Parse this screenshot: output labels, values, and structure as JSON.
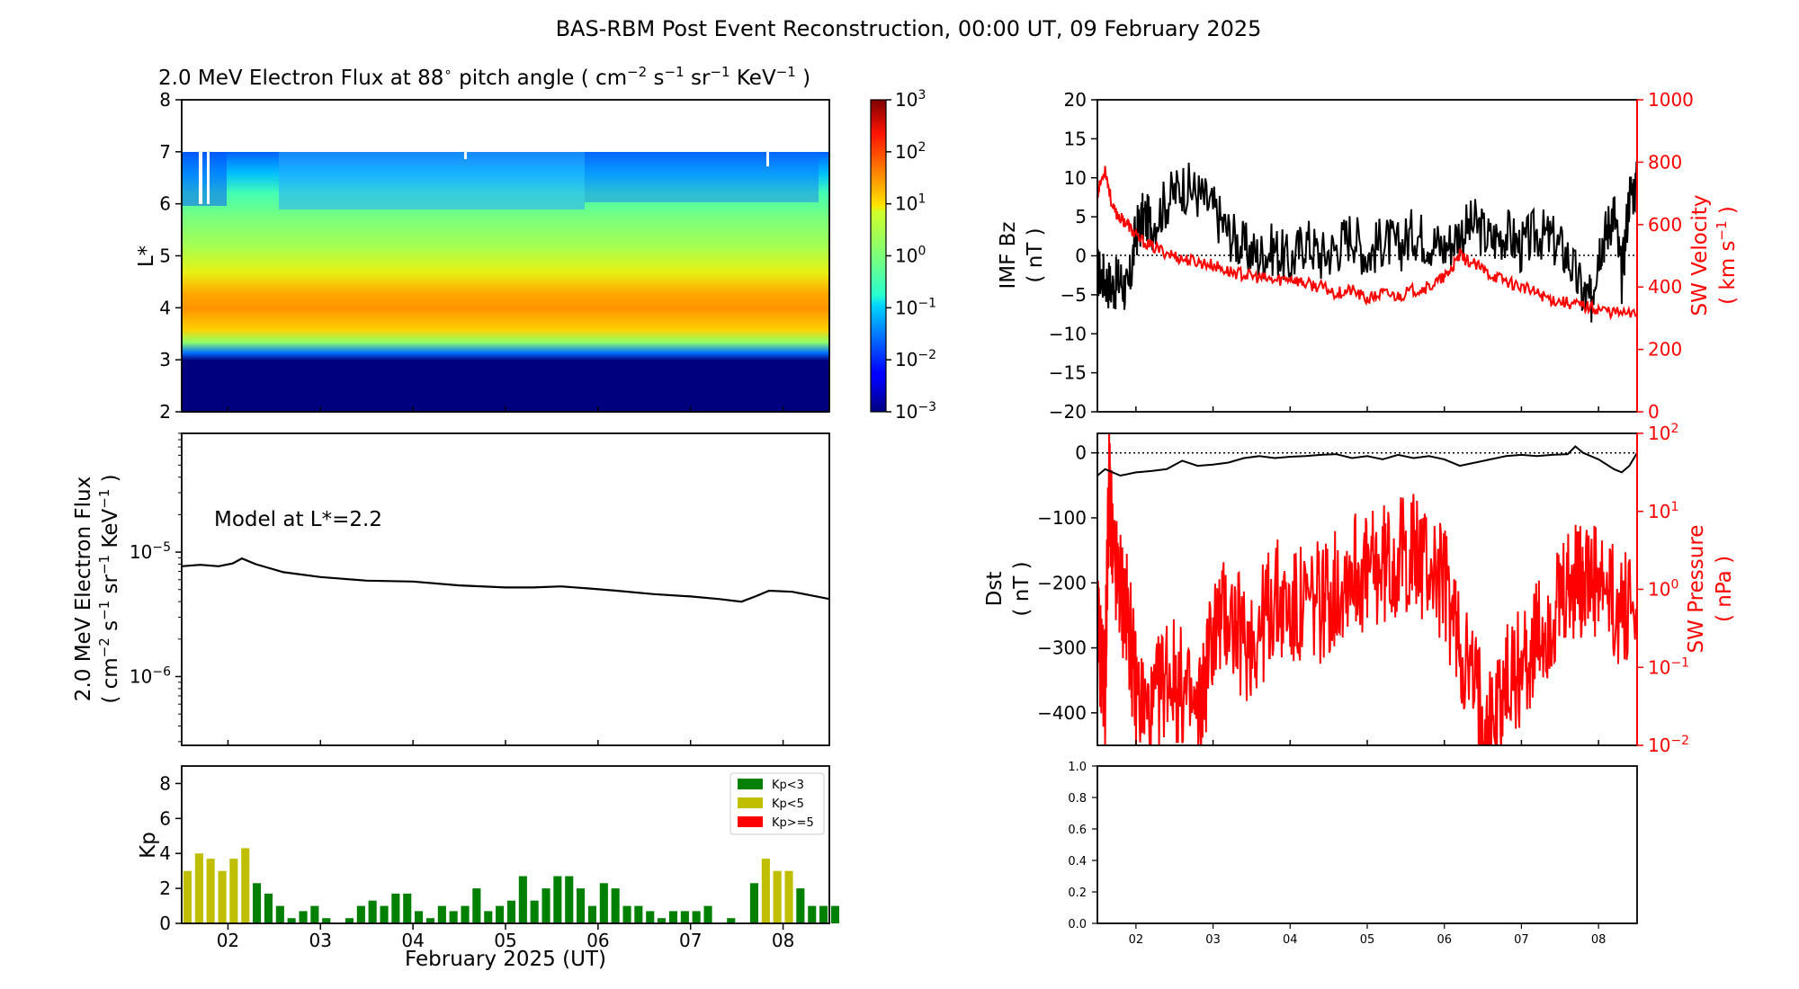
{
  "page_title": "BAS-RBM Post Event Reconstruction, 00:00 UT, 09 February 2025",
  "colors": {
    "black": "#000000",
    "red": "#ff0000",
    "kp_low": "#008000",
    "kp_mid": "#bfbf00",
    "kp_high": "#ff0000"
  },
  "chart_data": [
    {
      "id": "flux_spectrogram",
      "type": "heatmap",
      "title_prefix": "2.0 MeV Electron Flux at 88",
      "title_deg": "∘",
      "title_mid": "  pitch angle ( cm",
      "title_units": [
        "cm",
        "−2",
        "s",
        "−1",
        "sr",
        "−1",
        "KeV",
        "−1"
      ],
      "ylabel": "L*",
      "ylim": [
        2,
        8
      ],
      "yticks": [
        "2",
        "3",
        "4",
        "5",
        "6",
        "7",
        "8"
      ],
      "xlim_days": [
        1.5,
        8.5
      ],
      "colorbar_scale": "log",
      "colorbar_ticks": [
        {
          "base": "10",
          "exp": "3"
        },
        {
          "base": "10",
          "exp": "2"
        },
        {
          "base": "10",
          "exp": "1"
        },
        {
          "base": "10",
          "exp": "0"
        },
        {
          "base": "10",
          "exp": "−1"
        },
        {
          "base": "10",
          "exp": "−2"
        },
        {
          "base": "10",
          "exp": "−3"
        }
      ],
      "colorbar_range": [
        -3,
        3
      ],
      "profile_logflux_by_L": [
        [
          2.0,
          -3.0
        ],
        [
          3.0,
          -3.0
        ],
        [
          3.15,
          -1.6
        ],
        [
          3.35,
          0.2
        ],
        [
          3.6,
          1.1
        ],
        [
          4.0,
          1.5
        ],
        [
          4.3,
          1.35
        ],
        [
          4.7,
          0.9
        ],
        [
          5.2,
          0.4
        ],
        [
          5.7,
          0.0
        ],
        [
          6.2,
          -0.5
        ],
        [
          6.6,
          -1.1
        ],
        [
          7.0,
          -1.7
        ]
      ]
    },
    {
      "id": "model_flux",
      "type": "line",
      "annotation": "Model at L*=2.2",
      "ylabel": "2.0 MeV Electron Flux",
      "ylabel_units": [
        "( cm",
        "−2",
        "s",
        "−1",
        "sr",
        "−1",
        "KeV",
        "−1",
        " )"
      ],
      "yscale": "log",
      "ylim": [
        2.8e-07,
        9e-05
      ],
      "yticks": [
        {
          "base": "10",
          "exp": "−5"
        },
        {
          "base": "10",
          "exp": "−6"
        }
      ],
      "x": [
        1.5,
        1.7,
        1.9,
        2.05,
        2.15,
        2.3,
        2.6,
        3.0,
        3.5,
        4.0,
        4.5,
        5.0,
        5.3,
        5.6,
        5.9,
        6.2,
        6.6,
        7.0,
        7.3,
        7.55,
        7.7,
        7.85,
        8.1,
        8.5
      ],
      "y": [
        7.7e-06,
        7.9e-06,
        7.7e-06,
        8.1e-06,
        8.9e-06,
        8e-06,
        6.9e-06,
        6.3e-06,
        5.9e-06,
        5.8e-06,
        5.4e-06,
        5.2e-06,
        5.2e-06,
        5.3e-06,
        5.1e-06,
        4.9e-06,
        4.6e-06,
        4.4e-06,
        4.2e-06,
        4e-06,
        4.4e-06,
        4.9e-06,
        4.8e-06,
        4.2e-06
      ]
    },
    {
      "id": "kp",
      "type": "bar",
      "ylabel": "Kp",
      "xlabel": "February 2025 (UT)",
      "ylim": [
        0,
        9
      ],
      "yticks": [
        "0",
        "2",
        "4",
        "6",
        "8"
      ],
      "x_ticklabels": [
        "02",
        "03",
        "04",
        "05",
        "06",
        "07",
        "08"
      ],
      "legend": [
        "Kp<3",
        "Kp<5",
        "Kp>=5"
      ],
      "legend_position": "top-right",
      "bar_width_days": 0.1,
      "start_day": 1.5,
      "values": [
        3.0,
        4.0,
        3.7,
        3.0,
        3.7,
        4.3,
        2.3,
        1.7,
        1.0,
        0.3,
        0.7,
        1.0,
        0.3,
        0.0,
        0.3,
        1.0,
        1.3,
        1.0,
        1.7,
        1.7,
        0.7,
        0.3,
        1.0,
        0.7,
        1.0,
        2.0,
        0.7,
        1.0,
        1.3,
        2.7,
        1.3,
        2.0,
        2.7,
        2.7,
        2.0,
        1.0,
        2.3,
        2.0,
        1.0,
        1.0,
        0.7,
        0.3,
        0.7,
        0.7,
        0.7,
        1.0,
        0.0,
        0.3,
        0.0,
        2.3,
        3.7,
        3.0,
        3.0,
        2.0,
        1.0,
        1.0,
        1.0
      ]
    },
    {
      "id": "imf_sw",
      "type": "line",
      "ylabel_left": "IMF Bz",
      "ylabel_left_units": "( nT )",
      "ylim_left": [
        -20,
        20
      ],
      "yticks_left": [
        "20",
        "15",
        "10",
        "5",
        "0",
        "−5",
        "−10",
        "−15",
        "−20"
      ],
      "ylabel_right": "SW Velocity",
      "ylabel_right_units": [
        "( km s",
        "−1",
        " )"
      ],
      "ylim_right": [
        0,
        1000
      ],
      "yticks_right": [
        "1000",
        "800",
        "600",
        "400",
        "200",
        "0"
      ],
      "series": [
        {
          "name": "IMF Bz",
          "x": [
            1.5,
            1.6,
            1.7,
            1.8,
            1.9,
            2.0,
            2.1,
            2.2,
            2.4,
            2.6,
            2.8,
            3.0,
            3.2,
            3.4,
            3.6,
            3.8,
            4.0,
            4.2,
            4.4,
            4.6,
            4.8,
            5.0,
            5.2,
            5.4,
            5.6,
            5.8,
            6.0,
            6.2,
            6.4,
            6.6,
            6.8,
            7.0,
            7.2,
            7.4,
            7.6,
            7.8,
            7.9,
            8.0,
            8.1,
            8.2,
            8.3,
            8.4,
            8.5
          ],
          "y": [
            -2,
            -3,
            -4,
            -3,
            -5,
            3,
            5,
            4,
            7,
            9,
            8,
            6,
            3,
            1,
            0,
            1,
            -1,
            2,
            0,
            1,
            3,
            0,
            2,
            1,
            3,
            2,
            1,
            3,
            4,
            2,
            3,
            1,
            3,
            2,
            0,
            -5,
            -6,
            1,
            3,
            6,
            -3,
            8,
            9
          ]
        },
        {
          "name": "SW Velocity",
          "x": [
            1.5,
            1.6,
            1.7,
            1.8,
            1.9,
            2.0,
            2.2,
            2.4,
            2.6,
            2.8,
            3.0,
            3.2,
            3.4,
            3.6,
            3.8,
            4.0,
            4.2,
            4.4,
            4.6,
            4.8,
            5.0,
            5.2,
            5.4,
            5.6,
            5.8,
            6.0,
            6.1,
            6.2,
            6.4,
            6.6,
            6.8,
            7.0,
            7.2,
            7.4,
            7.6,
            7.8,
            8.0,
            8.2,
            8.5
          ],
          "y": [
            700,
            780,
            650,
            620,
            600,
            560,
            530,
            510,
            490,
            480,
            470,
            450,
            440,
            430,
            420,
            430,
            410,
            400,
            380,
            390,
            360,
            380,
            370,
            390,
            400,
            430,
            460,
            500,
            470,
            440,
            420,
            400,
            380,
            360,
            350,
            340,
            330,
            320,
            310
          ]
        }
      ]
    },
    {
      "id": "dst_pressure",
      "type": "line",
      "ylabel_left": "Dst",
      "ylabel_left_units": "( nT )",
      "ylim_left": [
        -450,
        30
      ],
      "yticks_left": [
        "0",
        "−100",
        "−200",
        "−300",
        "−400"
      ],
      "ylabel_right": "SW Pressure",
      "ylabel_right_units": "( nPa )",
      "yscale_right": "log",
      "ylim_right": [
        0.01,
        100
      ],
      "yticks_right": [
        {
          "base": "10",
          "exp": "2"
        },
        {
          "base": "10",
          "exp": "1"
        },
        {
          "base": "10",
          "exp": "0"
        },
        {
          "base": "10",
          "exp": "−1"
        },
        {
          "base": "10",
          "exp": "−2"
        }
      ],
      "series": [
        {
          "name": "Dst",
          "x": [
            1.5,
            1.6,
            1.7,
            1.8,
            2.0,
            2.2,
            2.4,
            2.6,
            2.8,
            3.0,
            3.2,
            3.4,
            3.6,
            3.8,
            4.0,
            4.2,
            4.4,
            4.6,
            4.8,
            5.0,
            5.2,
            5.4,
            5.6,
            5.8,
            6.0,
            6.2,
            6.4,
            6.6,
            6.8,
            7.0,
            7.2,
            7.4,
            7.6,
            7.7,
            7.8,
            8.0,
            8.2,
            8.3,
            8.4,
            8.5
          ],
          "y": [
            -35,
            -25,
            -30,
            -35,
            -30,
            -28,
            -25,
            -12,
            -20,
            -18,
            -15,
            -8,
            -5,
            -8,
            -6,
            -5,
            -3,
            -2,
            -8,
            -5,
            -10,
            -3,
            -8,
            -5,
            -10,
            -20,
            -15,
            -10,
            -5,
            -3,
            -5,
            -3,
            -2,
            10,
            0,
            -10,
            -25,
            -30,
            -20,
            0
          ]
        },
        {
          "name": "SW Pressure",
          "x": [
            1.5,
            1.6,
            1.65,
            1.7,
            1.8,
            1.9,
            2.0,
            2.2,
            2.4,
            2.6,
            2.8,
            3.0,
            3.2,
            3.4,
            3.6,
            3.8,
            4.0,
            4.2,
            4.4,
            4.6,
            4.8,
            5.0,
            5.2,
            5.4,
            5.6,
            5.8,
            6.0,
            6.2,
            6.4,
            6.6,
            6.8,
            7.0,
            7.2,
            7.4,
            7.6,
            7.75,
            7.8,
            8.0,
            8.2,
            8.5
          ],
          "y": [
            0.3,
            0.05,
            30,
            2,
            1,
            0.4,
            0.05,
            0.02,
            0.1,
            0.05,
            0.02,
            0.3,
            0.5,
            0.2,
            0.3,
            0.8,
            0.5,
            0.6,
            0.7,
            1,
            2,
            1.5,
            2,
            2.5,
            3,
            2,
            1.2,
            0.2,
            0.05,
            0.02,
            0.06,
            0.1,
            0.2,
            0.4,
            0.8,
            1.5,
            1.2,
            1,
            0.6,
            0.5
          ]
        }
      ]
    },
    {
      "id": "empty_panel",
      "type": "line",
      "ylim": [
        0,
        1
      ],
      "yticks": [
        "1.0",
        "0.8",
        "0.6",
        "0.4",
        "0.2",
        "0.0"
      ],
      "x_ticklabels": [
        "02",
        "03",
        "04",
        "05",
        "06",
        "07",
        "08"
      ]
    }
  ]
}
